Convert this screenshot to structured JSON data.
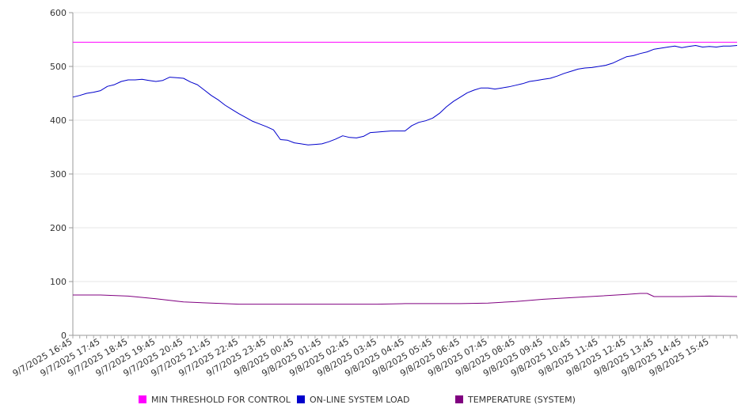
{
  "chart_data": {
    "type": "line",
    "title": "",
    "xlabel": "",
    "ylabel": "",
    "ylim": [
      0,
      600
    ],
    "y_ticks": [
      0,
      100,
      200,
      300,
      400,
      500,
      600
    ],
    "grid": true,
    "legend_position": "bottom",
    "x_start": "9/7/2025 16:45",
    "x_end": "9/8/2025 16:45",
    "x_tick_labels": [
      "9/7/2025 16:45",
      "9/7/2025 17:45",
      "9/7/2025 18:45",
      "9/7/2025 19:45",
      "9/7/2025 20:45",
      "9/7/2025 21:45",
      "9/7/2025 22:45",
      "9/7/2025 23:45",
      "9/8/2025 00:45",
      "9/8/2025 01:45",
      "9/8/2025 02:45",
      "9/8/2025 03:45",
      "9/8/2025 04:45",
      "9/8/2025 05:45",
      "9/8/2025 06:45",
      "9/8/2025 07:45",
      "9/8/2025 08:45",
      "9/8/2025 09:45",
      "9/8/2025 10:45",
      "9/8/2025 11:45",
      "9/8/2025 12:45",
      "9/8/2025 13:45",
      "9/8/2025 14:45",
      "9/8/2025 15:45"
    ],
    "series": [
      {
        "name": "MIN THRESHOLD FOR CONTROL",
        "color": "#ff00ff",
        "points": [
          [
            "9/7/2025 16:45",
            545
          ],
          [
            "9/8/2025 16:45",
            545
          ]
        ]
      },
      {
        "name": "ON-LINE SYSTEM LOAD",
        "color": "#0000cc",
        "points": [
          [
            "9/7/2025 16:45",
            443
          ],
          [
            "9/7/2025 17:00",
            446
          ],
          [
            "9/7/2025 17:15",
            450
          ],
          [
            "9/7/2025 17:30",
            452
          ],
          [
            "9/7/2025 17:45",
            455
          ],
          [
            "9/7/2025 18:00",
            463
          ],
          [
            "9/7/2025 18:15",
            466
          ],
          [
            "9/7/2025 18:30",
            472
          ],
          [
            "9/7/2025 18:45",
            475
          ],
          [
            "9/7/2025 19:00",
            475
          ],
          [
            "9/7/2025 19:15",
            476
          ],
          [
            "9/7/2025 19:30",
            474
          ],
          [
            "9/7/2025 19:45",
            472
          ],
          [
            "9/7/2025 20:00",
            474
          ],
          [
            "9/7/2025 20:15",
            480
          ],
          [
            "9/7/2025 20:30",
            479
          ],
          [
            "9/7/2025 20:45",
            478
          ],
          [
            "9/7/2025 21:00",
            471
          ],
          [
            "9/7/2025 21:15",
            466
          ],
          [
            "9/7/2025 21:30",
            456
          ],
          [
            "9/7/2025 21:45",
            446
          ],
          [
            "9/7/2025 22:00",
            438
          ],
          [
            "9/7/2025 22:15",
            428
          ],
          [
            "9/7/2025 22:30",
            420
          ],
          [
            "9/7/2025 22:45",
            412
          ],
          [
            "9/7/2025 23:00",
            405
          ],
          [
            "9/7/2025 23:15",
            398
          ],
          [
            "9/7/2025 23:30",
            393
          ],
          [
            "9/7/2025 23:45",
            388
          ],
          [
            "9/8/2025 00:00",
            382
          ],
          [
            "9/8/2025 00:15",
            364
          ],
          [
            "9/8/2025 00:30",
            363
          ],
          [
            "9/8/2025 00:45",
            358
          ],
          [
            "9/8/2025 01:00",
            356
          ],
          [
            "9/8/2025 01:15",
            354
          ],
          [
            "9/8/2025 01:30",
            355
          ],
          [
            "9/8/2025 01:45",
            356
          ],
          [
            "9/8/2025 02:00",
            360
          ],
          [
            "9/8/2025 02:15",
            365
          ],
          [
            "9/8/2025 02:30",
            371
          ],
          [
            "9/8/2025 02:45",
            368
          ],
          [
            "9/8/2025 03:00",
            367
          ],
          [
            "9/8/2025 03:15",
            370
          ],
          [
            "9/8/2025 03:30",
            377
          ],
          [
            "9/8/2025 03:45",
            378
          ],
          [
            "9/8/2025 04:00",
            379
          ],
          [
            "9/8/2025 04:15",
            380
          ],
          [
            "9/8/2025 04:30",
            380
          ],
          [
            "9/8/2025 04:45",
            380
          ],
          [
            "9/8/2025 05:00",
            390
          ],
          [
            "9/8/2025 05:15",
            396
          ],
          [
            "9/8/2025 05:30",
            399
          ],
          [
            "9/8/2025 05:45",
            404
          ],
          [
            "9/8/2025 06:00",
            413
          ],
          [
            "9/8/2025 06:15",
            425
          ],
          [
            "9/8/2025 06:30",
            435
          ],
          [
            "9/8/2025 06:45",
            443
          ],
          [
            "9/8/2025 07:00",
            451
          ],
          [
            "9/8/2025 07:15",
            456
          ],
          [
            "9/8/2025 07:30",
            460
          ],
          [
            "9/8/2025 07:45",
            460
          ],
          [
            "9/8/2025 08:00",
            458
          ],
          [
            "9/8/2025 08:15",
            460
          ],
          [
            "9/8/2025 08:30",
            462
          ],
          [
            "9/8/2025 08:45",
            465
          ],
          [
            "9/8/2025 09:00",
            468
          ],
          [
            "9/8/2025 09:15",
            472
          ],
          [
            "9/8/2025 09:30",
            474
          ],
          [
            "9/8/2025 09:45",
            476
          ],
          [
            "9/8/2025 10:00",
            478
          ],
          [
            "9/8/2025 10:15",
            482
          ],
          [
            "9/8/2025 10:30",
            487
          ],
          [
            "9/8/2025 10:45",
            491
          ],
          [
            "9/8/2025 11:00",
            495
          ],
          [
            "9/8/2025 11:15",
            497
          ],
          [
            "9/8/2025 11:30",
            498
          ],
          [
            "9/8/2025 11:45",
            500
          ],
          [
            "9/8/2025 12:00",
            502
          ],
          [
            "9/8/2025 12:15",
            506
          ],
          [
            "9/8/2025 12:30",
            512
          ],
          [
            "9/8/2025 12:45",
            518
          ],
          [
            "9/8/2025 13:00",
            520
          ],
          [
            "9/8/2025 13:15",
            524
          ],
          [
            "9/8/2025 13:30",
            527
          ],
          [
            "9/8/2025 13:45",
            532
          ],
          [
            "9/8/2025 14:00",
            534
          ],
          [
            "9/8/2025 14:15",
            536
          ],
          [
            "9/8/2025 14:30",
            538
          ],
          [
            "9/8/2025 14:45",
            535
          ],
          [
            "9/8/2025 15:00",
            537
          ],
          [
            "9/8/2025 15:15",
            539
          ],
          [
            "9/8/2025 15:30",
            536
          ],
          [
            "9/8/2025 15:45",
            537
          ],
          [
            "9/8/2025 16:00",
            536
          ],
          [
            "9/8/2025 16:15",
            538
          ],
          [
            "9/8/2025 16:30",
            538
          ],
          [
            "9/8/2025 16:45",
            539
          ]
        ]
      },
      {
        "name": "TEMPERATURE (SYSTEM)",
        "color": "#800080",
        "points": [
          [
            "9/7/2025 16:45",
            75
          ],
          [
            "9/7/2025 17:45",
            75
          ],
          [
            "9/7/2025 18:45",
            73
          ],
          [
            "9/7/2025 19:45",
            68
          ],
          [
            "9/7/2025 20:45",
            62
          ],
          [
            "9/7/2025 21:45",
            60
          ],
          [
            "9/7/2025 22:45",
            58
          ],
          [
            "9/7/2025 23:45",
            58
          ],
          [
            "9/8/2025 00:45",
            58
          ],
          [
            "9/8/2025 01:45",
            58
          ],
          [
            "9/8/2025 02:45",
            58
          ],
          [
            "9/8/2025 03:45",
            58
          ],
          [
            "9/8/2025 04:45",
            59
          ],
          [
            "9/8/2025 05:45",
            59
          ],
          [
            "9/8/2025 06:45",
            59
          ],
          [
            "9/8/2025 07:45",
            60
          ],
          [
            "9/8/2025 08:45",
            63
          ],
          [
            "9/8/2025 09:45",
            67
          ],
          [
            "9/8/2025 10:45",
            70
          ],
          [
            "9/8/2025 11:45",
            73
          ],
          [
            "9/8/2025 12:45",
            76
          ],
          [
            "9/8/2025 13:15",
            78
          ],
          [
            "9/8/2025 13:30",
            78
          ],
          [
            "9/8/2025 13:45",
            72
          ],
          [
            "9/8/2025 14:45",
            72
          ],
          [
            "9/8/2025 15:45",
            73
          ],
          [
            "9/8/2025 16:45",
            72
          ]
        ]
      }
    ]
  }
}
